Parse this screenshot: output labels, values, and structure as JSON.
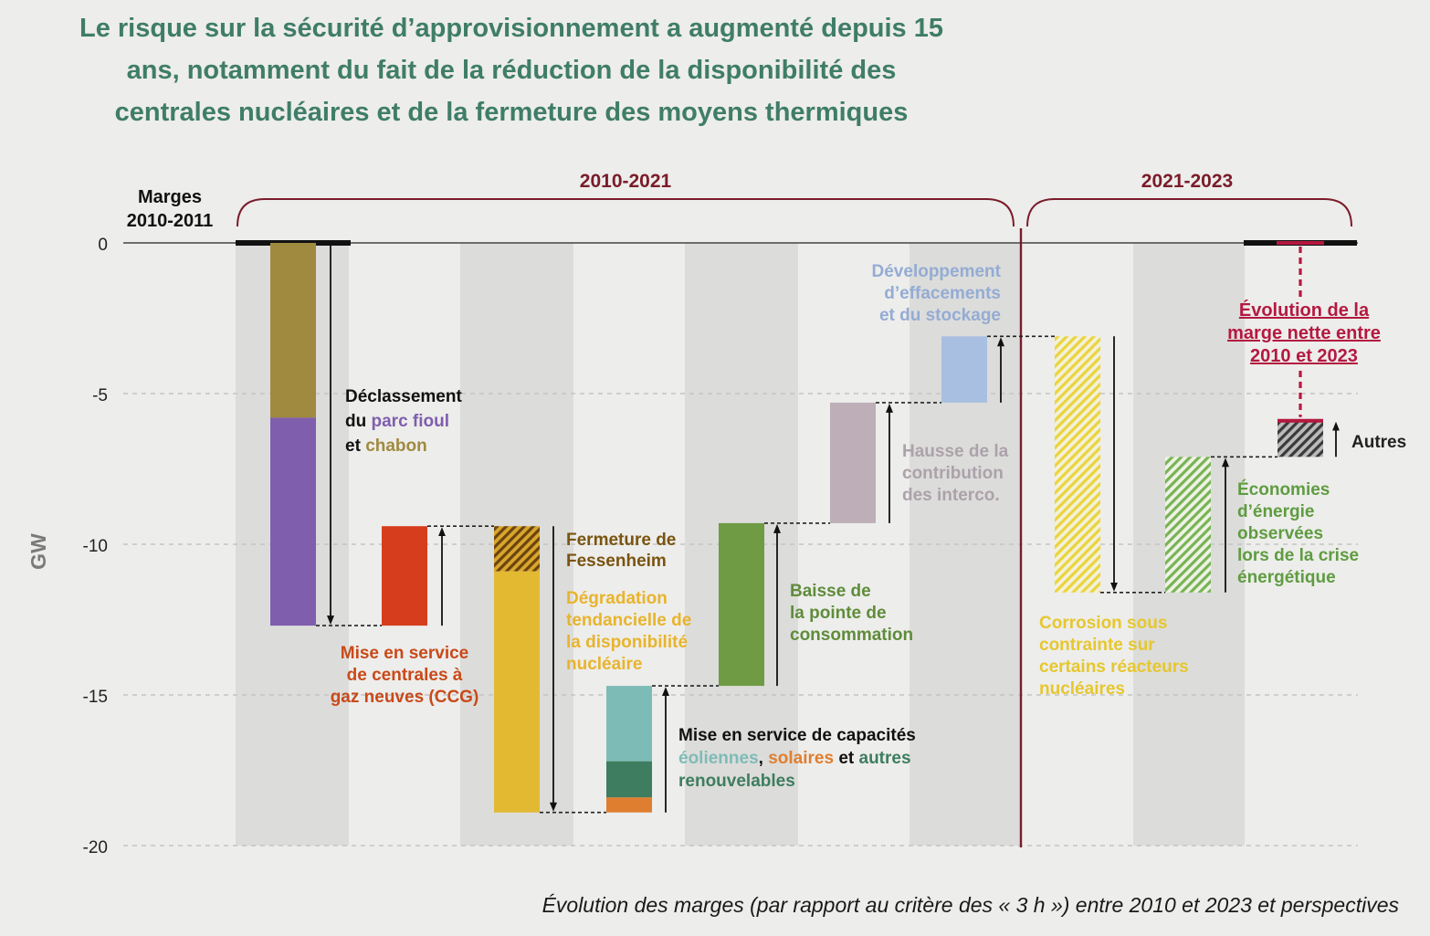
{
  "headline": {
    "line1": "Le risque sur la sécurité d’approvisionnement a augmenté depuis 15",
    "line2": "ans, notamment du fait de la réduction de la disponibilité des",
    "line3": "centrales nucléaires et de la fermeture des moyens thermiques"
  },
  "caption": "Évolution des marges (par rapport au critère des « 3 h ») entre 2010 et 2023 et perspectives",
  "colors": {
    "charbon": "#a08a40",
    "fioul": "#7f5eae",
    "ccg": "#d63d1c",
    "fessenheim": "#8a5a10",
    "nucleaire": "#e3b932",
    "eolien": "#7dbcb6",
    "solaire": "#e07e2f",
    "autres_enr": "#3e7d60",
    "pointe": "#6f9b44",
    "interco": "#bdaeb8",
    "effacement": "#a8bfe1",
    "corrosion": "#ead43c",
    "economies": "#79b354",
    "autres": "#555555",
    "net": "#b4193f",
    "divider": "#7a1c2a",
    "title": "#3f7d68"
  },
  "chart_data": {
    "type": "waterfall",
    "title": "Évolution des marges (par rapport au critère des « 3 h ») entre 2010 et 2023 et perspectives",
    "ylabel": "GW",
    "ylim": [
      -20,
      0
    ],
    "yticks": [
      0,
      -5,
      -10,
      -15,
      -20
    ],
    "yticklabels": [
      "0",
      "-5",
      "-10",
      "-15",
      "-20"
    ],
    "periods": [
      {
        "label": "2010-2021"
      },
      {
        "label": "2021-2023"
      }
    ],
    "start_label": [
      "Marges",
      "2010-2011"
    ],
    "steps": [
      {
        "id": "declassement",
        "from": 0,
        "to": -12.7,
        "direction": "down",
        "segments": [
          {
            "name": "charbon",
            "from": 0,
            "to": -5.8,
            "color": "#a08a40",
            "hatched": false
          },
          {
            "name": "fioul",
            "from": -5.8,
            "to": -12.7,
            "color": "#7f5eae",
            "hatched": false
          }
        ],
        "label": [
          [
            {
              "t": "Déclassement",
              "c": "#111111"
            }
          ],
          [
            {
              "t": "du ",
              "c": "#111111"
            },
            {
              "t": "parc fioul",
              "c": "#7f5eae"
            }
          ],
          [
            {
              "t": "et ",
              "c": "#111111"
            },
            {
              "t": "chabon",
              "c": "#a08a40"
            }
          ]
        ]
      },
      {
        "id": "ccg",
        "from": -12.7,
        "to": -9.4,
        "direction": "up",
        "segments": [
          {
            "name": "ccg",
            "from": -12.7,
            "to": -9.4,
            "color": "#d63d1c",
            "hatched": false
          }
        ],
        "label": [
          [
            {
              "t": "Mise en service",
              "c": "#c84a1a"
            }
          ],
          [
            {
              "t": "de centrales à",
              "c": "#c84a1a"
            }
          ],
          [
            {
              "t": "gaz neuves (CCG)",
              "c": "#c84a1a"
            }
          ]
        ]
      },
      {
        "id": "nucleaire",
        "from": -9.4,
        "to": -18.9,
        "direction": "down",
        "segments": [
          {
            "name": "fessenheim",
            "from": -9.4,
            "to": -10.9,
            "color": "#8a5a10",
            "hatched": true
          },
          {
            "name": "degradation",
            "from": -10.9,
            "to": -18.9,
            "color": "#e3b932",
            "hatched": false
          }
        ],
        "label_fessenheim": [
          [
            {
              "t": "Fermeture de",
              "c": "#7a5410"
            }
          ],
          [
            {
              "t": "Fessenheim",
              "c": "#7a5410"
            }
          ]
        ],
        "label": [
          [
            {
              "t": "Dégradation",
              "c": "#e8b42e"
            }
          ],
          [
            {
              "t": "tendancielle de",
              "c": "#e8b42e"
            }
          ],
          [
            {
              "t": "la disponibilité",
              "c": "#e8b42e"
            }
          ],
          [
            {
              "t": "nucléaire",
              "c": "#e8b42e"
            }
          ]
        ]
      },
      {
        "id": "renouvelables",
        "from": -18.9,
        "to": -14.7,
        "direction": "up",
        "segments": [
          {
            "name": "solaire",
            "from": -18.9,
            "to": -18.4,
            "color": "#e07e2f",
            "hatched": false
          },
          {
            "name": "autres_enr",
            "from": -18.4,
            "to": -17.2,
            "color": "#3e7d60",
            "hatched": false
          },
          {
            "name": "eolien",
            "from": -17.2,
            "to": -14.7,
            "color": "#7dbcb6",
            "hatched": false
          }
        ],
        "label": [
          [
            {
              "t": "Mise en service de capacités",
              "c": "#111111"
            }
          ],
          [
            {
              "t": "éoliennes",
              "c": "#7dbcb6"
            },
            {
              "t": ", ",
              "c": "#111111"
            },
            {
              "t": "solaires",
              "c": "#e07e2f"
            },
            {
              "t": " et ",
              "c": "#111111"
            },
            {
              "t": "autres",
              "c": "#3e7d60"
            }
          ],
          [
            {
              "t": "renouvelables",
              "c": "#3e7d60"
            }
          ]
        ]
      },
      {
        "id": "pointe",
        "from": -14.7,
        "to": -9.3,
        "direction": "up",
        "segments": [
          {
            "name": "pointe",
            "from": -14.7,
            "to": -9.3,
            "color": "#6f9b44",
            "hatched": false
          }
        ],
        "label": [
          [
            {
              "t": "Baisse de",
              "c": "#5f8c3a"
            }
          ],
          [
            {
              "t": "la pointe de",
              "c": "#5f8c3a"
            }
          ],
          [
            {
              "t": "consommation",
              "c": "#5f8c3a"
            }
          ]
        ]
      },
      {
        "id": "interco",
        "from": -9.3,
        "to": -5.3,
        "direction": "up",
        "segments": [
          {
            "name": "interco",
            "from": -9.3,
            "to": -5.3,
            "color": "#bdaeb8",
            "hatched": false
          }
        ],
        "label": [
          [
            {
              "t": "Hausse de la",
              "c": "#aca2aa"
            }
          ],
          [
            {
              "t": "contribution",
              "c": "#aca2aa"
            }
          ],
          [
            {
              "t": "des interco.",
              "c": "#aca2aa"
            }
          ]
        ]
      },
      {
        "id": "effacement",
        "from": -5.3,
        "to": -3.1,
        "direction": "up",
        "segments": [
          {
            "name": "effacement",
            "from": -5.3,
            "to": -3.1,
            "color": "#a8bfe1",
            "hatched": false
          }
        ],
        "label": [
          [
            {
              "t": "Développement",
              "c": "#94acd4"
            }
          ],
          [
            {
              "t": "d’effacements",
              "c": "#94acd4"
            }
          ],
          [
            {
              "t": "et du stockage",
              "c": "#94acd4"
            }
          ]
        ]
      },
      {
        "id": "corrosion",
        "from": -3.1,
        "to": -11.6,
        "direction": "down",
        "segments": [
          {
            "name": "corrosion",
            "from": -3.1,
            "to": -11.6,
            "color": "#ead43c",
            "hatched": true
          }
        ],
        "label": [
          [
            {
              "t": "Corrosion sous",
              "c": "#e6c72e"
            }
          ],
          [
            {
              "t": "contrainte sur",
              "c": "#e6c72e"
            }
          ],
          [
            {
              "t": "certains réacteurs",
              "c": "#e6c72e"
            }
          ],
          [
            {
              "t": "nucléaires",
              "c": "#e6c72e"
            }
          ]
        ]
      },
      {
        "id": "economies",
        "from": -11.6,
        "to": -7.1,
        "direction": "up",
        "segments": [
          {
            "name": "economies",
            "from": -11.6,
            "to": -7.1,
            "color": "#79b354",
            "hatched": true
          }
        ],
        "label": [
          [
            {
              "t": "Économies",
              "c": "#5f9c40"
            }
          ],
          [
            {
              "t": "d’énergie",
              "c": "#5f9c40"
            }
          ],
          [
            {
              "t": "observées",
              "c": "#5f9c40"
            }
          ],
          [
            {
              "t": "lors de la crise",
              "c": "#5f9c40"
            }
          ],
          [
            {
              "t": "énergétique",
              "c": "#5f9c40"
            }
          ]
        ]
      },
      {
        "id": "autres",
        "from": -7.1,
        "to": -5.9,
        "direction": "up",
        "segments": [
          {
            "name": "autres",
            "from": -7.1,
            "to": -5.9,
            "color": "#555555",
            "hatched": true
          }
        ],
        "label": [
          [
            {
              "t": "Autres",
              "c": "#222222"
            }
          ]
        ]
      }
    ],
    "net_change": {
      "from": 0,
      "to": -5.9,
      "label": [
        "Évolution de la",
        "marge nette entre",
        "2010 et 2023"
      ]
    }
  }
}
